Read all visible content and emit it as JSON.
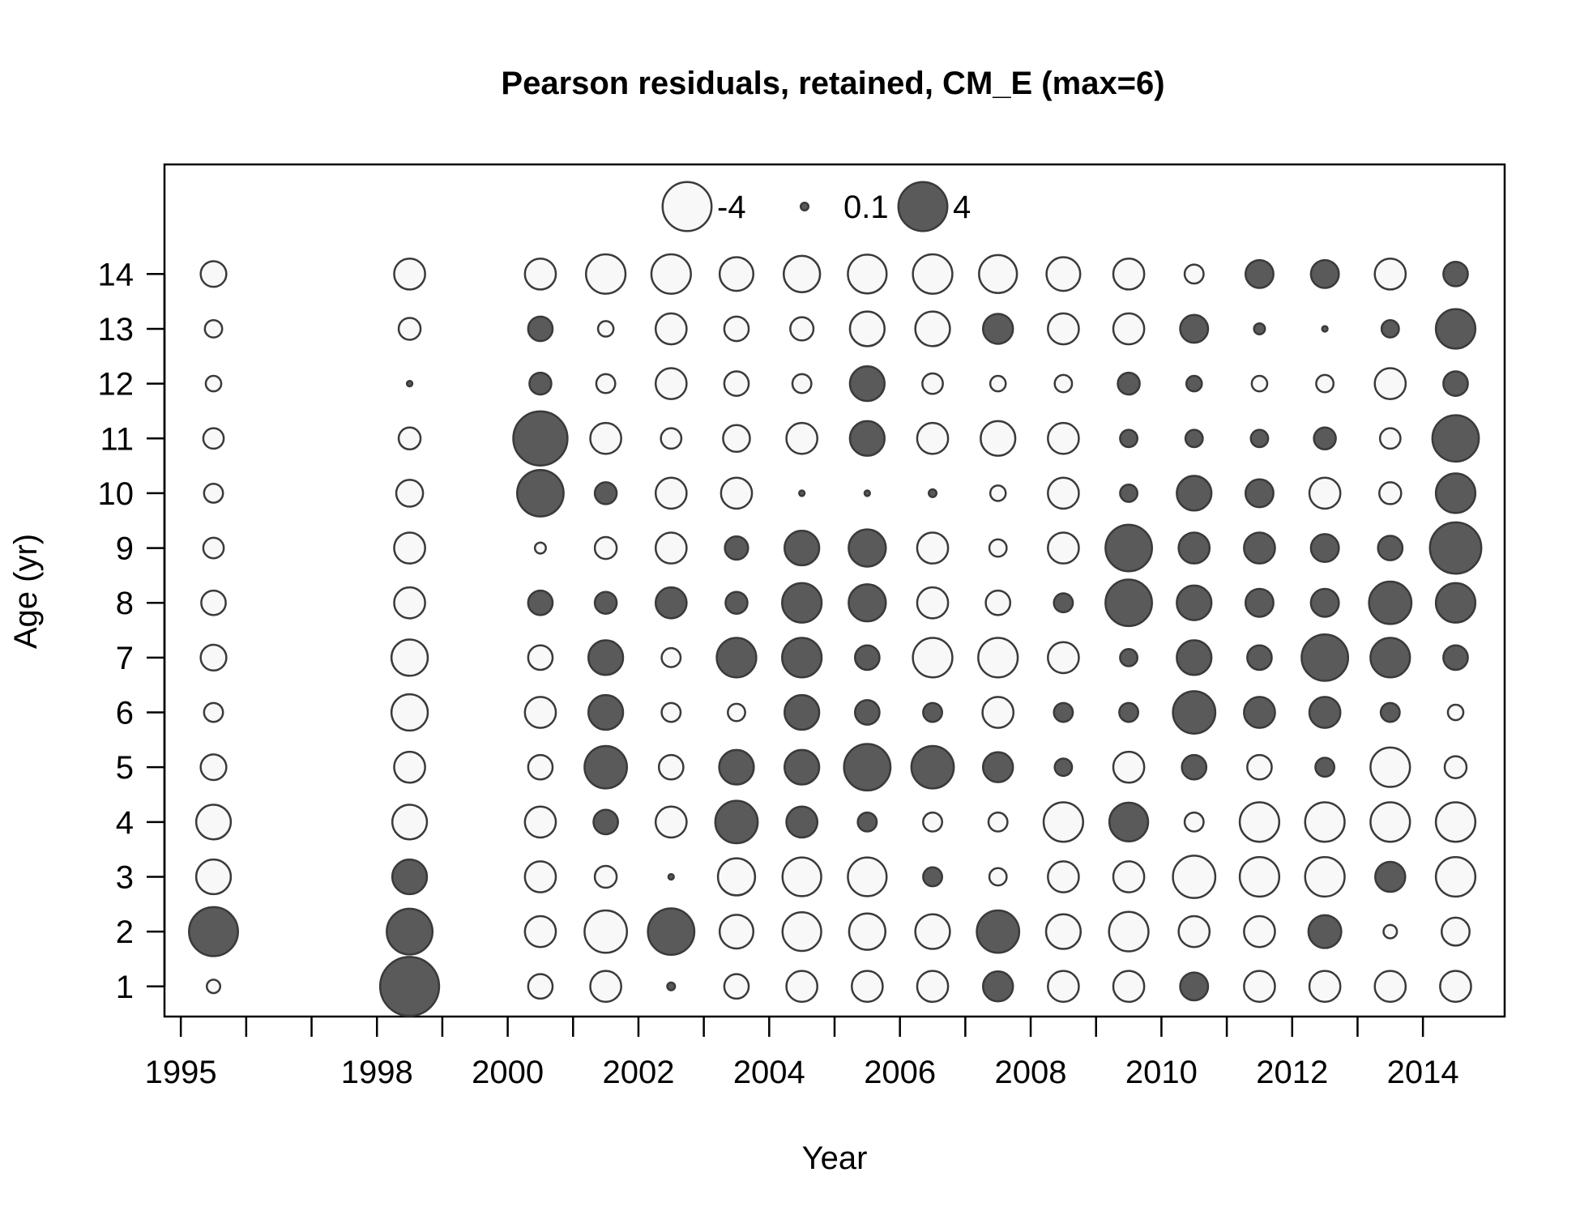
{
  "chart_data": {
    "type": "scatter",
    "subtype": "bubble",
    "title": "Pearson residuals, retained, CM_E (max=6)",
    "xlabel": "Year",
    "ylabel": "Age (yr)",
    "x_ticks": [
      1995,
      1998,
      2000,
      2002,
      2004,
      2006,
      2008,
      2010,
      2012,
      2014
    ],
    "y_ticks": [
      1,
      2,
      3,
      4,
      5,
      6,
      7,
      8,
      9,
      10,
      11,
      12,
      13,
      14
    ],
    "xlim": [
      1994.75,
      2015.25
    ],
    "ylim": [
      0.45,
      16.0
    ],
    "legend": {
      "placement": "top-center",
      "items": [
        {
          "label": "-4",
          "value": -4
        },
        {
          "label": "0.1",
          "value": 0.1
        },
        {
          "label": "4",
          "value": 4
        }
      ]
    },
    "colors": {
      "positive": "#5a5a5a",
      "negative": "#f8f8f8",
      "stroke": "#3a3a3a"
    },
    "years": [
      1995.5,
      1998.5,
      2000.5,
      2001.5,
      2002.5,
      2003.5,
      2004.5,
      2005.5,
      2006.5,
      2007.5,
      2008.5,
      2009.5,
      2010.5,
      2011.5,
      2012.5,
      2013.5,
      2014.5
    ],
    "ages": [
      1,
      2,
      3,
      4,
      5,
      6,
      7,
      8,
      9,
      10,
      11,
      12,
      13,
      14
    ],
    "residuals": [
      [
        -0.3,
        4.0,
        -2.0,
        -2.0,
        -1.1,
        -0.6,
        -1.1,
        -1.0,
        -0.7,
        -0.6,
        -0.7,
        -0.4,
        -0.5,
        -1.1
      ],
      [
        5.8,
        3.5,
        2.0,
        -2.0,
        -1.6,
        -2.2,
        -2.2,
        -1.6,
        -1.6,
        -1.2,
        -0.8,
        0.05,
        -0.8,
        -1.6
      ],
      [
        -1.0,
        -1.6,
        -1.6,
        -1.6,
        -1.0,
        -1.6,
        -1.0,
        1.0,
        -0.2,
        3.6,
        4.9,
        0.8,
        1.0,
        -1.6
      ],
      [
        -1.6,
        -3.0,
        -0.8,
        1.0,
        3.0,
        2.0,
        2.0,
        0.8,
        -0.8,
        0.8,
        -1.6,
        -0.6,
        -0.4,
        -2.6
      ],
      [
        0.1,
        3.6,
        0.05,
        -1.6,
        -1.0,
        -0.6,
        -0.6,
        1.6,
        -1.6,
        -1.6,
        -0.7,
        -1.6,
        -1.6,
        -2.6
      ],
      [
        -1.0,
        -1.9,
        -2.3,
        3.0,
        2.0,
        -0.5,
        2.6,
        0.8,
        0.9,
        -1.6,
        -1.2,
        -1.0,
        -1.0,
        -1.9
      ],
      [
        -1.6,
        -2.5,
        -2.5,
        1.6,
        2.0,
        2.0,
        2.6,
        2.6,
        2.0,
        0.05,
        -1.6,
        -0.6,
        -0.9,
        -2.2
      ],
      [
        -1.6,
        -2.2,
        -2.5,
        0.6,
        3.6,
        1.0,
        1.0,
        2.3,
        2.3,
        0.05,
        2.0,
        2.0,
        -2.0,
        -2.5
      ],
      [
        -1.6,
        -2.0,
        0.6,
        -0.6,
        3.0,
        0.6,
        -2.6,
        -1.6,
        -1.6,
        0.1,
        -1.6,
        -0.7,
        -2.0,
        -2.6
      ],
      [
        1.5,
        3.0,
        -0.5,
        -0.6,
        1.5,
        -1.6,
        -2.6,
        -1.0,
        -0.5,
        -0.4,
        -2.0,
        -0.4,
        1.5,
        -2.4
      ],
      [
        -1.6,
        -2.0,
        -1.6,
        -2.6,
        0.5,
        0.6,
        -1.6,
        0.6,
        -1.6,
        -1.6,
        -1.6,
        -0.5,
        -1.6,
        -1.9
      ],
      [
        -1.6,
        -2.6,
        -1.6,
        2.5,
        -1.6,
        0.6,
        0.5,
        3.6,
        3.6,
        0.5,
        0.5,
        0.8,
        -1.6,
        -1.6
      ],
      [
        1.3,
        -1.6,
        -3.0,
        -0.6,
        1.0,
        3.0,
        2.0,
        2.0,
        1.6,
        2.0,
        0.5,
        0.4,
        1.3,
        -0.6
      ],
      [
        -1.6,
        -1.6,
        -2.6,
        -2.6,
        -1.0,
        1.6,
        1.0,
        1.3,
        1.6,
        1.3,
        0.5,
        -0.4,
        0.2,
        1.3
      ],
      [
        -1.6,
        1.8,
        -2.6,
        -2.6,
        0.6,
        1.6,
        3.6,
        1.3,
        1.3,
        -1.6,
        0.8,
        -0.5,
        0.05,
        1.3
      ],
      [
        -1.6,
        -0.3,
        1.5,
        -2.6,
        -2.6,
        0.6,
        2.6,
        3.0,
        1.0,
        -0.8,
        -0.7,
        -1.6,
        0.5,
        -1.6
      ],
      [
        -1.6,
        -1.3,
        -2.6,
        -2.6,
        -0.8,
        -0.4,
        1.0,
        2.6,
        4.4,
        2.6,
        3.6,
        1.0,
        2.6,
        1.0
      ]
    ]
  }
}
